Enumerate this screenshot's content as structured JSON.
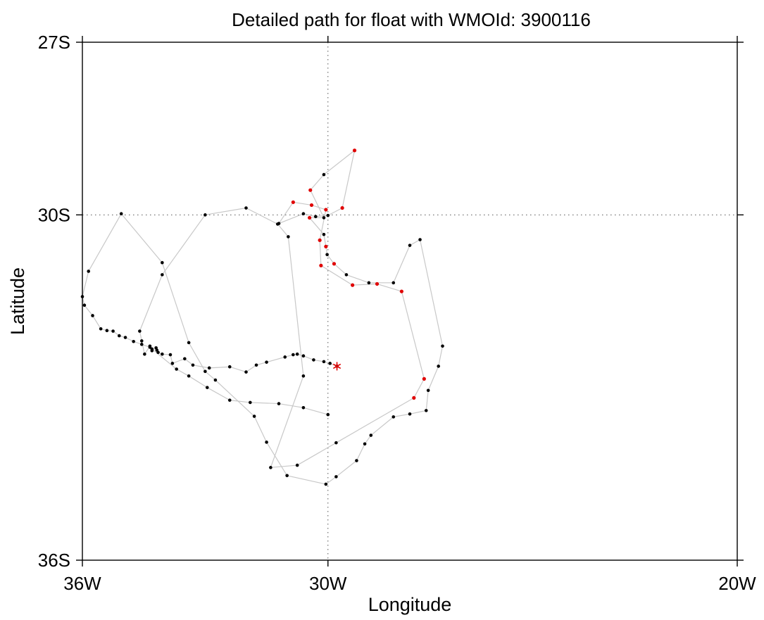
{
  "chart_data": {
    "type": "scatter",
    "title": "Detailed path for float with WMOId: 3900116",
    "xlabel": "Longitude",
    "ylabel": "Latitude",
    "xlim": [
      -36,
      -20
    ],
    "ylim": [
      -36,
      -27
    ],
    "xticks": [
      {
        "value": -36,
        "label": "36W"
      },
      {
        "value": -30,
        "label": "30W"
      },
      {
        "value": -20,
        "label": "20W"
      }
    ],
    "yticks": [
      {
        "value": -27,
        "label": "27S"
      },
      {
        "value": -30,
        "label": "30S"
      },
      {
        "value": -36,
        "label": "36S"
      }
    ],
    "reference_lines": {
      "x": [
        -30
      ],
      "y": [
        -30
      ]
    },
    "colors": {
      "track": "#c8c8c8",
      "fix": "#000000",
      "highlight": "#e00000",
      "reference": "#555555"
    },
    "series": [
      {
        "points": [
          [
            -29.78,
            -32.63
          ],
          [
            -29.95,
            -32.58
          ],
          [
            -30.1,
            -32.55
          ],
          [
            -30.35,
            -32.52
          ],
          [
            -30.6,
            -32.45
          ],
          [
            -30.75,
            -32.42
          ],
          [
            -30.85,
            -32.43
          ],
          [
            -31.05,
            -32.47
          ],
          [
            -31.5,
            -32.56
          ],
          [
            -31.75,
            -32.61
          ],
          [
            -32.0,
            -32.73
          ],
          [
            -32.4,
            -32.64
          ],
          [
            -32.9,
            -32.66
          ],
          [
            -33.3,
            -32.61
          ],
          [
            -33.5,
            -32.5
          ],
          [
            -33.8,
            -32.58
          ],
          [
            -33.85,
            -32.43
          ],
          [
            -34.05,
            -32.42
          ],
          [
            -34.15,
            -32.39
          ],
          [
            -34.18,
            -32.35
          ],
          [
            -34.2,
            -32.31
          ],
          [
            -34.3,
            -32.36
          ],
          [
            -34.35,
            -32.28
          ],
          [
            -34.48,
            -32.42
          ],
          [
            -34.55,
            -32.19
          ],
          [
            -34.6,
            -32.02
          ],
          [
            -34.05,
            -31.04
          ],
          [
            -33.0,
            -30.0
          ],
          [
            -32.0,
            -29.88
          ],
          [
            -31.23,
            -30.16
          ],
          [
            -30.97,
            -30.38
          ],
          [
            -30.6,
            -32.8
          ],
          [
            -31.4,
            -34.39
          ],
          [
            -30.75,
            -34.35
          ],
          [
            -29.8,
            -33.96
          ],
          [
            -27.9,
            -33.18
          ],
          [
            -27.65,
            -32.85
          ],
          [
            -28.2,
            -31.33
          ],
          [
            -28.8,
            -31.2
          ],
          [
            -29.4,
            -31.22
          ],
          [
            -30.17,
            -30.88
          ],
          [
            -30.2,
            -30.44
          ],
          [
            -30.05,
            -29.91
          ],
          [
            -30.4,
            -29.83
          ],
          [
            -30.85,
            -29.78
          ],
          [
            -31.2,
            -30.15
          ],
          [
            -30.6,
            -29.98
          ],
          [
            -30.3,
            -30.03
          ],
          [
            -30.0,
            -30.01
          ],
          [
            -29.65,
            -29.88
          ],
          [
            -29.35,
            -28.88
          ],
          [
            -30.1,
            -29.3
          ],
          [
            -30.43,
            -29.57
          ],
          [
            -30.1,
            -30.05
          ],
          [
            -30.45,
            -30.05
          ],
          [
            -30.1,
            -30.34
          ],
          [
            -30.05,
            -30.55
          ],
          [
            -30.02,
            -30.69
          ],
          [
            -29.85,
            -30.85
          ],
          [
            -29.55,
            -31.04
          ],
          [
            -29.0,
            -31.18
          ],
          [
            -28.4,
            -31.18
          ],
          [
            -28.0,
            -30.53
          ],
          [
            -27.75,
            -30.43
          ],
          [
            -27.2,
            -32.28
          ],
          [
            -27.3,
            -32.63
          ],
          [
            -27.55,
            -33.05
          ],
          [
            -27.6,
            -33.4
          ],
          [
            -28.0,
            -33.46
          ],
          [
            -28.4,
            -33.51
          ],
          [
            -28.95,
            -33.83
          ],
          [
            -29.1,
            -33.98
          ],
          [
            -29.3,
            -34.27
          ],
          [
            -29.8,
            -34.55
          ],
          [
            -30.05,
            -34.68
          ],
          [
            -31.0,
            -34.53
          ],
          [
            -31.5,
            -33.95
          ],
          [
            -31.8,
            -33.5
          ],
          [
            -32.75,
            -32.87
          ],
          [
            -33.0,
            -32.72
          ],
          [
            -33.4,
            -32.22
          ],
          [
            -34.05,
            -30.83
          ],
          [
            -35.05,
            -29.98
          ],
          [
            -35.85,
            -30.98
          ],
          [
            -36.0,
            -31.42
          ],
          [
            -35.95,
            -31.57
          ],
          [
            -35.75,
            -31.75
          ],
          [
            -35.55,
            -31.98
          ],
          [
            -35.4,
            -32.01
          ],
          [
            -35.25,
            -32.02
          ],
          [
            -35.1,
            -32.1
          ],
          [
            -34.95,
            -32.13
          ],
          [
            -34.75,
            -32.2
          ],
          [
            -34.55,
            -32.25
          ],
          [
            -34.35,
            -32.3
          ],
          [
            -34.3,
            -32.33
          ],
          [
            -33.7,
            -32.68
          ],
          [
            -33.4,
            -32.8
          ],
          [
            -32.95,
            -33.0
          ],
          [
            -32.4,
            -33.22
          ],
          [
            -31.9,
            -33.26
          ],
          [
            -31.2,
            -33.28
          ],
          [
            -30.6,
            -33.35
          ],
          [
            -30.0,
            -33.47
          ]
        ],
        "highlight_indices": [
          35,
          36,
          37,
          38,
          39,
          40,
          41,
          42,
          43,
          44,
          49,
          50,
          52,
          54,
          56,
          58
        ],
        "current_position": [
          -29.78,
          -32.63
        ]
      }
    ]
  }
}
